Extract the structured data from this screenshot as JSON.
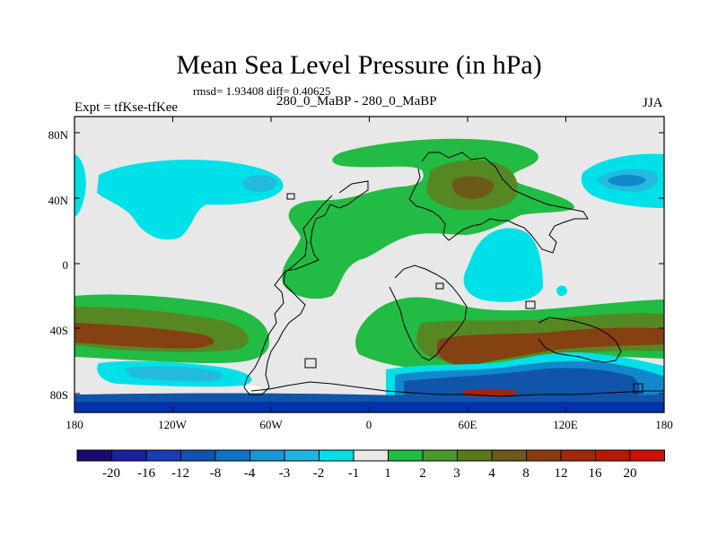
{
  "title": "Mean Sea Level Pressure (in hPa)",
  "stats": "rmsd= 1.93408 diff= 0.40625",
  "left_label": "Expt = tfKse-tfKee",
  "center_label": "280_0_MaBP - 280_0_MaBP",
  "right_label": "JJA",
  "colors": {
    "frame": "#000000",
    "white_band": "#e8e8e8",
    "green": "#22bb44",
    "olive": "#558822",
    "dark_olive": "#6b5a1a",
    "brown": "#8a3a10",
    "red_brown": "#aa2200",
    "light_cyan": "#00e0e8",
    "cyan": "#22bbdd",
    "blue": "#1188cc",
    "med_blue": "#1155aa",
    "dark_blue": "#0033aa"
  },
  "y_axis": {
    "ticks": [
      "80N",
      "40N",
      "0",
      "40S",
      "80S"
    ]
  },
  "x_axis": {
    "ticks": [
      "180",
      "120W",
      "60W",
      "0",
      "60E",
      "120E",
      "180"
    ]
  },
  "colorbar": {
    "labels": [
      "-20",
      "-16",
      "-12",
      "-8",
      "-4",
      "-3",
      "-2",
      "-1",
      "1",
      "2",
      "3",
      "4",
      "8",
      "12",
      "16",
      "20"
    ],
    "colors": [
      "#1a0a6e",
      "#1b1fa0",
      "#1a3cb4",
      "#1153b4",
      "#1172c4",
      "#1a96d2",
      "#22b4e0",
      "#00e0e8",
      "#e8e8e8",
      "#22bb44",
      "#4a9a2a",
      "#5a7a1a",
      "#6b5a1a",
      "#8a3a10",
      "#a02a08",
      "#b81a00",
      "#d01000"
    ]
  }
}
